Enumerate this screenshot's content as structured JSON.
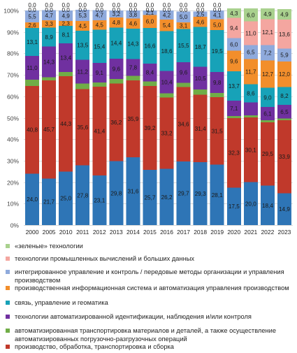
{
  "chart_data": {
    "type": "stacked-bar-percent",
    "title": "",
    "xlabel": "",
    "ylabel": "",
    "ylim": [
      0,
      100
    ],
    "y_ticks": [
      "0%",
      "10%",
      "20%",
      "30%",
      "40%",
      "50%",
      "60%",
      "70%",
      "80%",
      "90%",
      "100%"
    ],
    "grid": true,
    "legend_position": "bottom",
    "categories": [
      "2000",
      "2005",
      "2010",
      "2011",
      "2012",
      "2013",
      "2014",
      "2015",
      "2016",
      "2017",
      "2018",
      "2019",
      "2020",
      "2021",
      "2022",
      "2023"
    ],
    "series": [
      {
        "name": "производство, обработка, транспортировка и сборка",
        "color": "#2E75B6",
        "values": [
          24.0,
          21.7,
          25.0,
          27.8,
          23.1,
          29.8,
          31.6,
          25.7,
          26.2,
          29.7,
          29.3,
          28.1,
          17.5,
          20.0,
          18.4,
          14.9
        ]
      },
      {
        "name": "автоматизированная транспортировка материалов и деталей, а также осуществление автоматизированных погрузочно-разгрузочных операций",
        "color": "#C0392B",
        "values": [
          40.8,
          45.7,
          44.3,
          35.6,
          41.4,
          36.2,
          35.9,
          39.2,
          33.2,
          34.6,
          31.4,
          31.5,
          32.3,
          30.1,
          29.5,
          33.9
        ]
      },
      {
        "name": "технологии автоматизированной идентификации, наблюдения и/или контроля",
        "color": "#70AD47",
        "values": [
          3.0,
          1.5,
          2.0,
          2.5,
          2.0,
          2.0,
          2.0,
          2.0,
          2.0,
          2.0,
          2.5,
          2.0,
          1.0,
          1.0,
          1.0,
          0.8
        ]
      },
      {
        "name": "связь, управление и геоматика",
        "color": "#7030A0",
        "values": [
          11.0,
          14.3,
          13.4,
          11.2,
          9.1,
          9.6,
          7.8,
          8.4,
          10.4,
          9.6,
          10.5,
          9.8,
          7.1,
          6.0,
          6.1,
          6.5
        ]
      },
      {
        "name": "производственная информационная система и автоматизация управления производством",
        "color": "#17A2B8",
        "values": [
          13.1,
          8.9,
          8.1,
          13.5,
          15.4,
          14.4,
          14.3,
          16.6,
          18.6,
          15.5,
          18.7,
          19.5,
          13.7,
          8.6,
          9.0,
          8.2
        ]
      },
      {
        "name": "интегрированное управление и контроль / передовые методы организации и управления производством",
        "color": "#F28E2B",
        "values": [
          2.6,
          3.3,
          2.3,
          4.5,
          4.5,
          4.8,
          4.6,
          6.0,
          5.4,
          3.1,
          4.6,
          5.0,
          9.6,
          11.7,
          12.7,
          12.0
        ]
      },
      {
        "name": "технологии промышленных вычислений и больших данных",
        "color": "#8FAADC",
        "values": [
          5.5,
          4.7,
          4.9,
          5.3,
          4.7,
          3.2,
          3.8,
          2.1,
          4.2,
          5.0,
          2.5,
          4.1,
          6.0,
          6.5,
          7.2,
          5.9
        ]
      },
      {
        "name": "«зеленые» технологии",
        "color": "#F4A6A0",
        "values": [
          0.0,
          0.0,
          0.0,
          0.0,
          0.0,
          0.0,
          0.0,
          0.0,
          0.0,
          0.0,
          0.0,
          0.0,
          9.4,
          11.0,
          12.1,
          13.6
        ]
      },
      {
        "name": "",
        "color": "#A9D18E",
        "values": [
          0.0,
          0.0,
          0.0,
          0.0,
          0.0,
          0.0,
          0.0,
          0.0,
          0.0,
          0.0,
          0.0,
          0.0,
          4.3,
          6.0,
          4.9,
          4.9
        ]
      }
    ],
    "data_labels": [
      [
        "24,0",
        "21,7",
        "25,0",
        "27,8",
        "23,1",
        "29,8",
        "31,6",
        "25,7",
        "26,2",
        "29,7",
        "29,3",
        "28,1",
        "17,5",
        "20,0",
        "18,4",
        "14,9"
      ],
      [
        "40,8",
        "45,7",
        "44,3",
        "35,6",
        "41,4",
        "36,2",
        "35,9",
        "39,2",
        "33,2",
        "34,6",
        "31,4",
        "31,5",
        "32,3",
        "30,1",
        "29,5",
        "33,9"
      ],
      [
        "",
        "",
        "",
        "",
        "",
        "",
        "",
        "",
        "",
        "",
        "",
        "",
        "",
        "",
        "",
        ""
      ],
      [
        "11,0",
        "14,3",
        "13,4",
        "11,2",
        "9,1",
        "9,6",
        "7,8",
        "8,4",
        "10,4",
        "9,6",
        "10,5",
        "9,8",
        "7,1",
        "",
        "6,1",
        "6,5"
      ],
      [
        "13,1",
        "8,9",
        "8,1",
        "13,5",
        "15,4",
        "14,4",
        "14,3",
        "16,6",
        "18,6",
        "15,5",
        "18,7",
        "19,5",
        "13,7",
        "8,6",
        "9,0",
        "8,2"
      ],
      [
        "2,6",
        "3,3",
        "2,3",
        "4,5",
        "4,5",
        "4,8",
        "4,6",
        "6,0",
        "5,4",
        "3,1",
        "4,6",
        "5,0",
        "9,6",
        "11,7",
        "12,7",
        "12,0"
      ],
      [
        "5,5",
        "4,7",
        "4,9",
        "5,3",
        "4,7",
        "3,2",
        "3,8",
        "2,1",
        "4,2",
        "5,0",
        "2,5",
        "4,1",
        "6,0",
        "6,5",
        "7,2",
        "5,9"
      ],
      [
        "0,0",
        "0,0",
        "0,0",
        "0,0",
        "0,0",
        "0,0",
        "0,0",
        "0,0",
        "0,0",
        "0,0",
        "0,0",
        "0,0",
        "9,4",
        "11,0",
        "12,1",
        "13,6"
      ],
      [
        "0,0",
        "0,0",
        "0,0",
        "0,0",
        "0,0",
        "0,0",
        "0,0",
        "0,0",
        "0,0",
        "0,0",
        "0,0",
        "0,0",
        "4,3",
        "6,0",
        "4,9",
        "4,9"
      ]
    ]
  },
  "legend": {
    "items": [
      {
        "label": "«зеленые» технологии",
        "color": "#A9D18E"
      },
      {
        "label": "технологии промышленных вычислений и больших данных",
        "color": "#F4A6A0"
      },
      {
        "label": "интегрированное управление и контроль / передовые методы организации и управления производством",
        "color": "#8FAADC"
      },
      {
        "label": "производственная информационная система и автоматизация управления производством",
        "color": "#F28E2B"
      },
      {
        "label": "связь, управление и геоматика",
        "color": "#17A2B8"
      },
      {
        "label": "технологии автоматизированной идентификации, наблюдения и/или контроля",
        "color": "#7030A0"
      },
      {
        "label": "автоматизированная транспортировка материалов и деталей, а также осуществление автоматизированных погрузочно-разгрузочных операций",
        "color": "#70AD47"
      },
      {
        "label": "производство, обработка, транспортировка и сборка",
        "color": "#C0392B"
      }
    ]
  }
}
